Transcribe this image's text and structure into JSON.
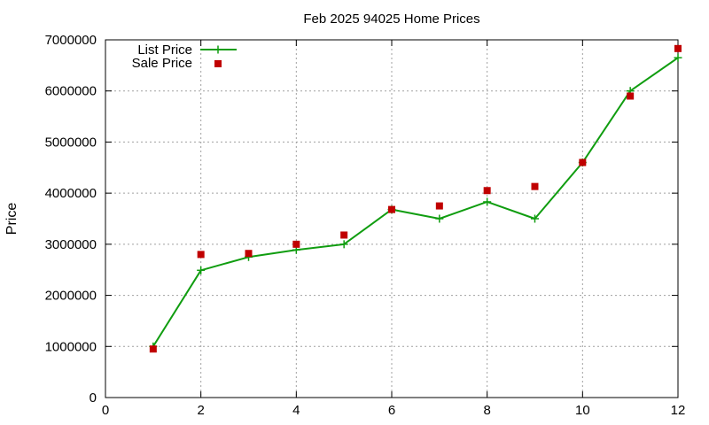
{
  "chart_data": {
    "type": "line",
    "title": "Feb 2025 94025 Home Prices",
    "xlabel": "",
    "ylabel": "Price",
    "xlim": [
      0,
      12
    ],
    "ylim": [
      0,
      7000000
    ],
    "xticks": [
      0,
      2,
      4,
      6,
      8,
      10,
      12
    ],
    "yticks": [
      0,
      1000000,
      2000000,
      3000000,
      4000000,
      5000000,
      6000000,
      7000000
    ],
    "grid": true,
    "legend_position": "top-left",
    "series": [
      {
        "name": "List Price",
        "style": "line-with-plus-markers",
        "color": "#109d10",
        "x": [
          1,
          2,
          3,
          4,
          5,
          6,
          7,
          8,
          9,
          10,
          11,
          12
        ],
        "y": [
          1000000,
          2490000,
          2750000,
          2890000,
          3000000,
          3680000,
          3500000,
          3830000,
          3500000,
          4600000,
          6000000,
          6650000
        ]
      },
      {
        "name": "Sale Price",
        "style": "square-markers",
        "color": "#c00000",
        "x": [
          1,
          2,
          3,
          4,
          5,
          6,
          7,
          8,
          9,
          10,
          11,
          12
        ],
        "y": [
          950000,
          2800000,
          2820000,
          3000000,
          3180000,
          3680000,
          3750000,
          4050000,
          4130000,
          4600000,
          5900000,
          6830000
        ]
      }
    ]
  }
}
